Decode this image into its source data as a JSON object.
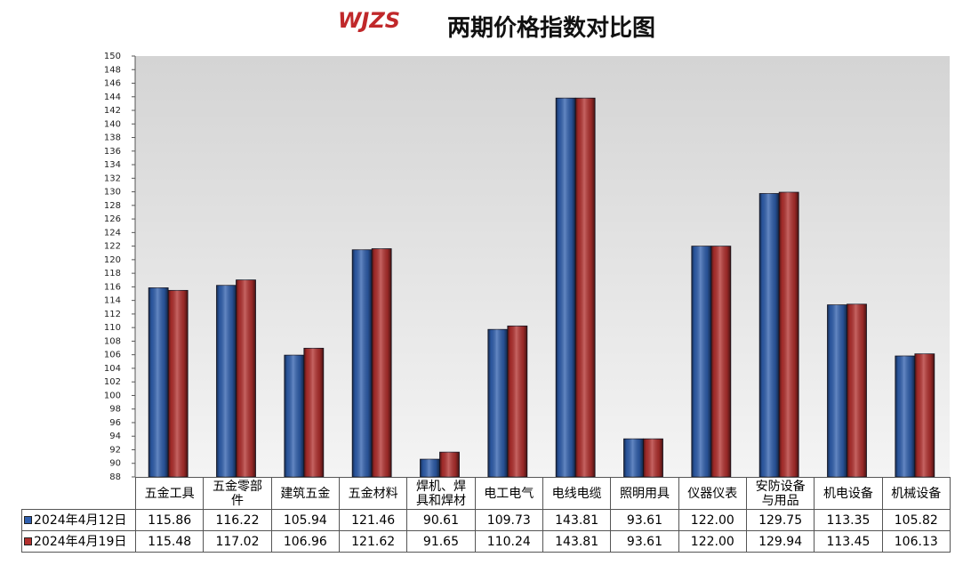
{
  "logo": "WJZS",
  "chart_data": {
    "type": "bar",
    "title": "两期价格指数对比图",
    "categories": [
      "五金工具",
      "五金零部件",
      "建筑五金",
      "五金材料",
      "焊机、焊具和焊材",
      "电工电气",
      "电线电缆",
      "照明用具",
      "仪器仪表",
      "安防设备与用品",
      "机电设备",
      "机械设备"
    ],
    "series": [
      {
        "name": "2024年4月12日",
        "color": "#2f5fae",
        "values": [
          115.86,
          116.22,
          105.94,
          121.46,
          90.61,
          109.73,
          143.81,
          93.61,
          122,
          129.75,
          113.35,
          105.82
        ],
        "value_labels": [
          "115.86",
          "116.22",
          "105.94",
          "121.46",
          "90.61",
          "109.73",
          "143.81",
          "93.61",
          "122.00",
          "129.75",
          "113.35",
          "105.82"
        ]
      },
      {
        "name": "2024年4月19日",
        "color": "#b3302e",
        "values": [
          115.48,
          117.02,
          106.96,
          121.62,
          91.65,
          110.24,
          143.81,
          93.61,
          122,
          129.94,
          113.45,
          106.13
        ],
        "value_labels": [
          "115.48",
          "117.02",
          "106.96",
          "121.62",
          "91.65",
          "110.24",
          "143.81",
          "93.61",
          "122.00",
          "129.94",
          "113.45",
          "106.13"
        ]
      }
    ],
    "ylim": [
      88,
      150
    ],
    "yticks": [
      88,
      90,
      92,
      94,
      96,
      98,
      100,
      102,
      104,
      106,
      108,
      110,
      112,
      114,
      116,
      118,
      120,
      122,
      124,
      126,
      128,
      130,
      132,
      134,
      136,
      138,
      140,
      142,
      144,
      146,
      148,
      150
    ]
  }
}
